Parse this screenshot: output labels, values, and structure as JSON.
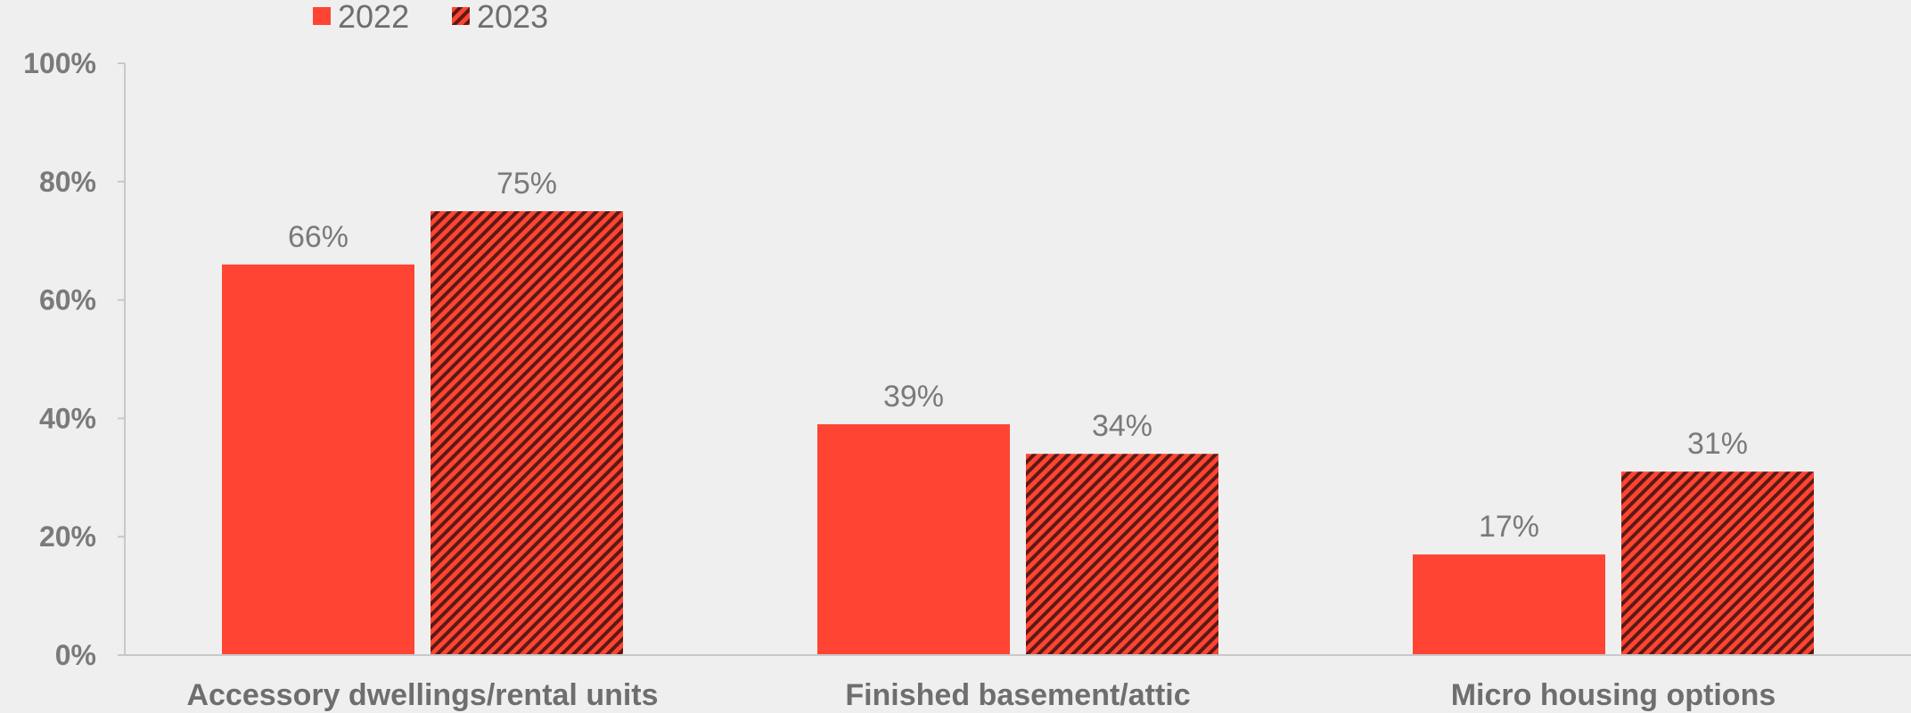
{
  "chart_data": {
    "type": "bar",
    "categories": [
      "Accessory dwellings/rental units",
      "Finished basement/attic",
      "Micro housing options"
    ],
    "series": [
      {
        "name": "2022",
        "values": [
          66,
          39,
          17
        ],
        "labels": [
          "66%",
          "39%",
          "17%"
        ],
        "color": "#ff4433",
        "pattern": "solid"
      },
      {
        "name": "2023",
        "values": [
          75,
          34,
          31
        ],
        "labels": [
          "75%",
          "34%",
          "31%"
        ],
        "color": "#ff4433",
        "pattern": "diagonal-hatch",
        "hatch_color": "#5a1a14"
      }
    ],
    "y_ticks": [
      0,
      20,
      40,
      60,
      80,
      100
    ],
    "y_tick_labels": [
      "0%",
      "20%",
      "40%",
      "60%",
      "80%",
      "100%"
    ],
    "ylim": [
      0,
      100
    ],
    "title": "",
    "xlabel": "",
    "ylabel": "",
    "legend_position": "top-left",
    "grid": false,
    "axis_color": "#c8c8c8",
    "background": "#efefef"
  }
}
